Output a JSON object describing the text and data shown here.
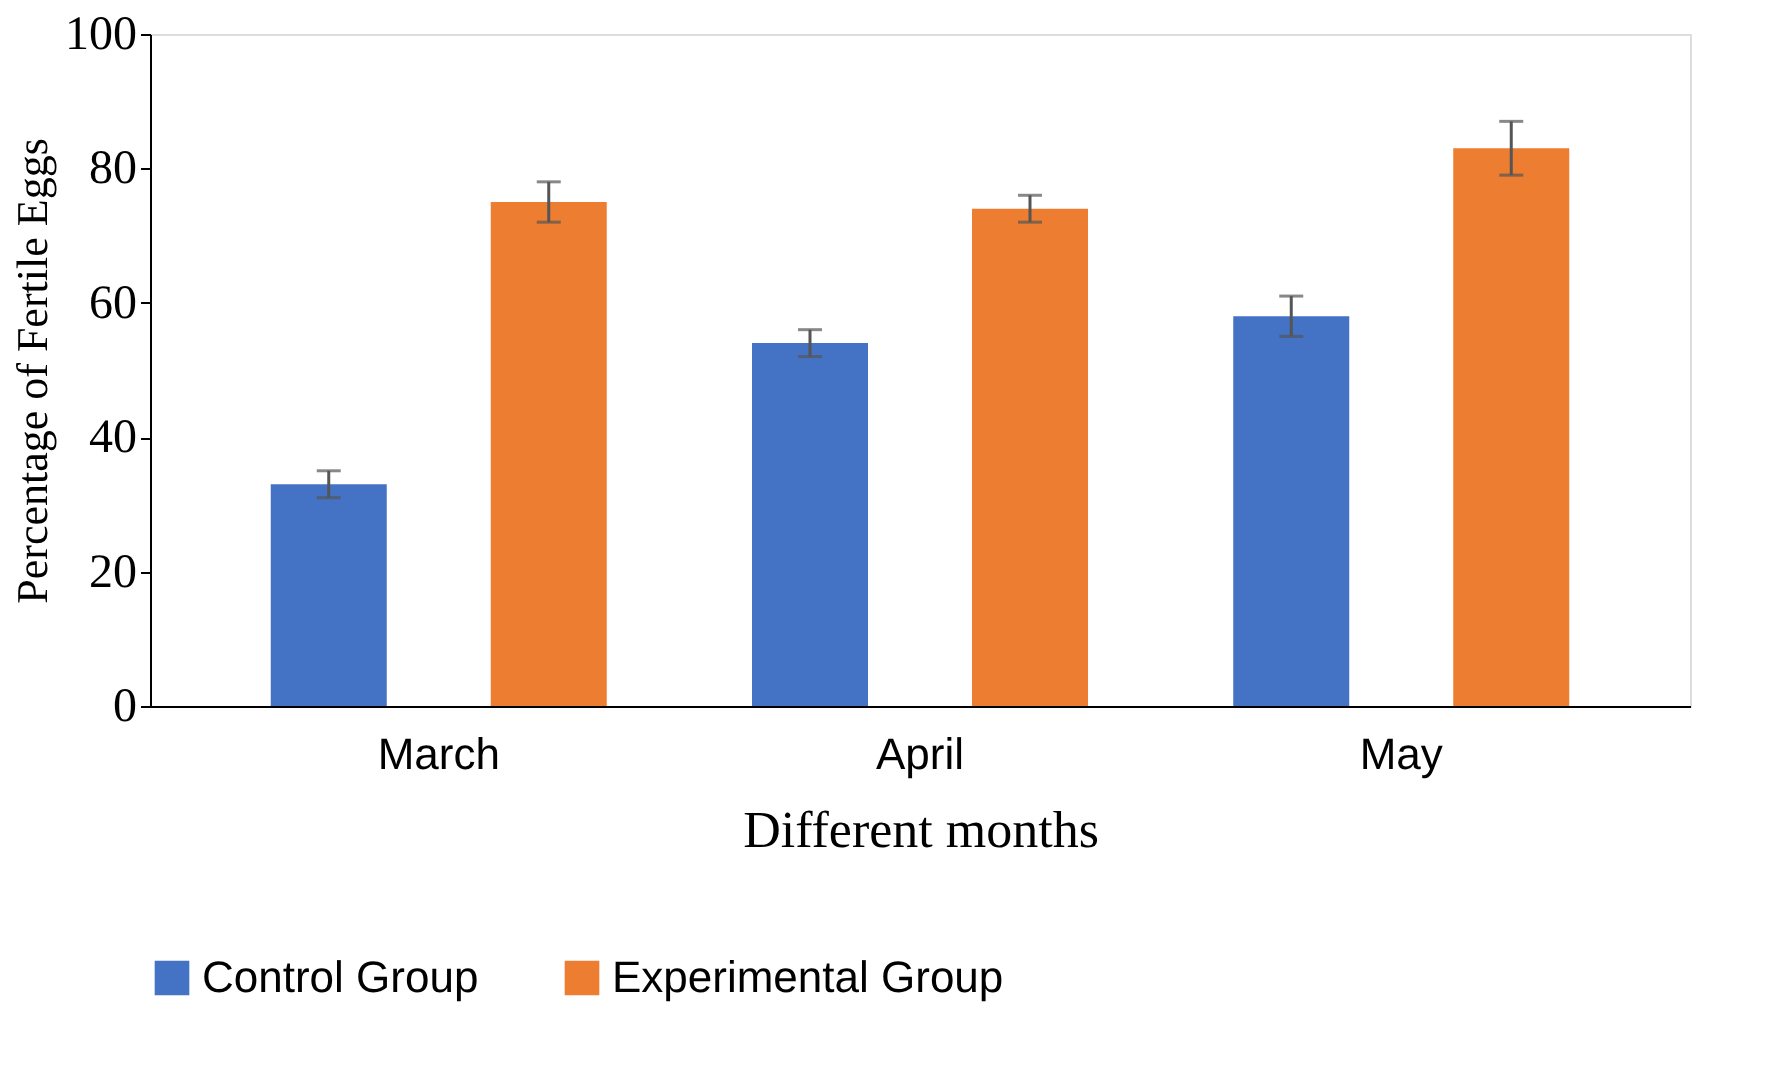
{
  "chart_data": {
    "type": "bar",
    "xlabel": "Different months",
    "ylabel": "Percentage of Fertile Eggs",
    "categories": [
      "March",
      "April",
      "May"
    ],
    "series": [
      {
        "name": "Control Group",
        "color": "#4472c4",
        "values": [
          33,
          54,
          58
        ],
        "errors": [
          2,
          2,
          3
        ]
      },
      {
        "name": "Experimental Group",
        "color": "#ed7d31",
        "values": [
          75,
          74,
          83
        ],
        "errors": [
          3,
          2,
          4
        ]
      }
    ],
    "ylim": [
      0,
      100
    ],
    "yticks": [
      0,
      20,
      40,
      60,
      80,
      100
    ],
    "grid": false,
    "legend": "bottom"
  }
}
